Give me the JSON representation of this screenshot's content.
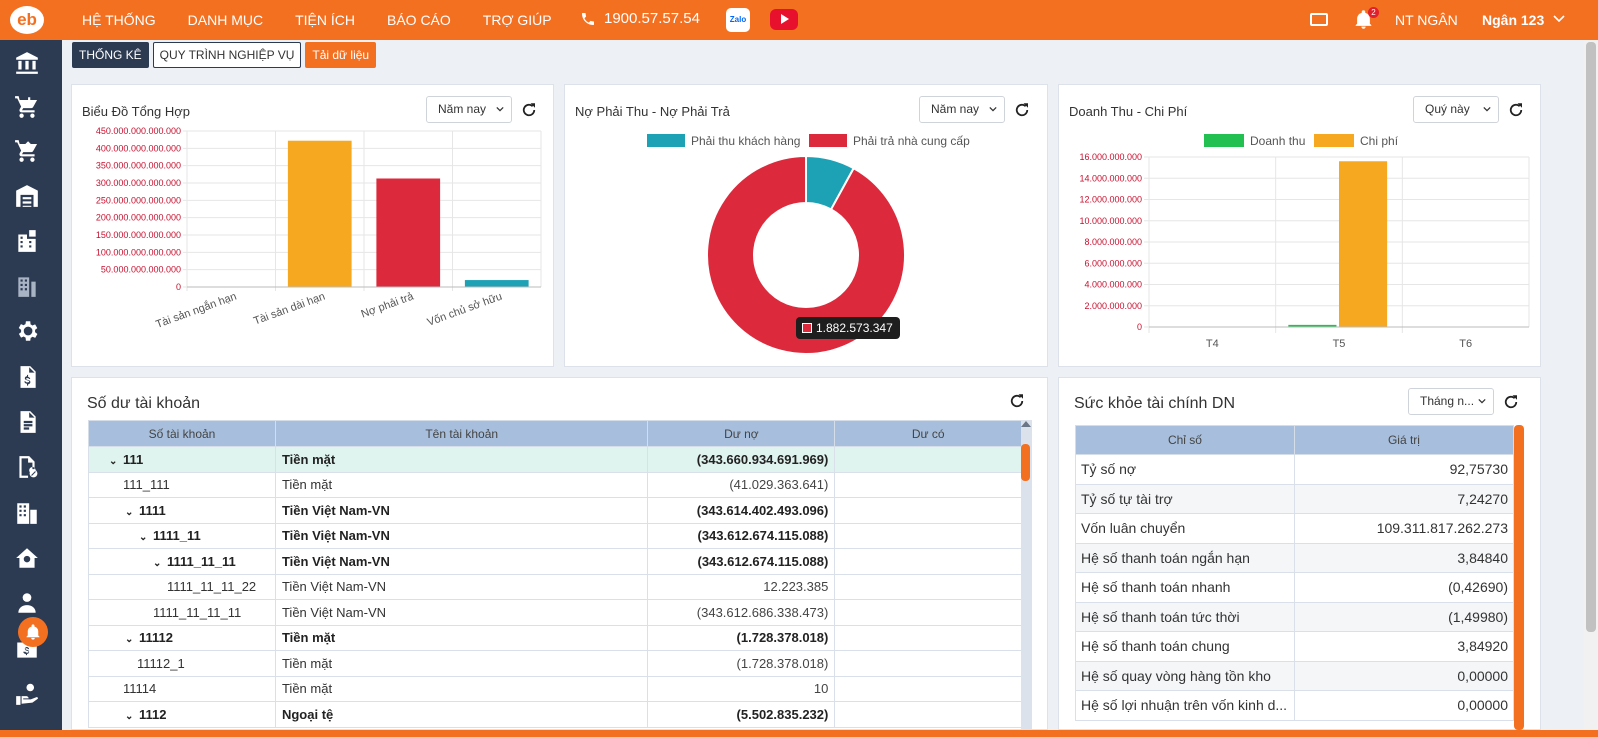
{
  "app": {
    "logo": "eb"
  },
  "topbar": {
    "menu": [
      "HỆ THỐNG",
      "DANH MỤC",
      "TIỆN ÍCH",
      "BÁO CÁO",
      "TRỢ GIÚP"
    ],
    "hotline": "1900.57.57.54",
    "zalo_label": "Zalo",
    "notification_count": "2",
    "user_short": "NT NGÂN",
    "user_name": "Ngân 123"
  },
  "tabs": [
    "THỐNG KÊ",
    "QUY TRÌNH NGHIỆP VỤ",
    "Tải dữ liệu"
  ],
  "cards": {
    "summary": {
      "title": "Biểu Đồ Tổng Hợp",
      "filter": "Năm nay"
    },
    "debt": {
      "title": "Nợ Phải Thu - Nợ Phải Trả",
      "filter": "Năm nay",
      "tooltip": "1.882.573.347"
    },
    "revenue": {
      "title": "Doanh Thu - Chi Phí",
      "filter": "Quý này"
    },
    "accounts": {
      "title": "Số dư tài khoản"
    },
    "health": {
      "title": "Sức khỏe tài chính DN",
      "filter": "Tháng n..."
    }
  },
  "chart_data": [
    {
      "type": "bar",
      "categories": [
        "Tài sản ngắn hạn",
        "Tài sản dài hạn",
        "Nợ phải trả",
        "Vốn chủ sở hữu"
      ],
      "values": [
        0,
        422000000000000,
        313000000000000,
        20000000000000
      ],
      "colors": [
        "#f6a821",
        "#f6a821",
        "#dc2a3c",
        "#1da1b5"
      ],
      "ylim": [
        0,
        450000000000000
      ],
      "yticks": [
        "450.000.000.000.000",
        "400.000.000.000.000",
        "350.000.000.000.000",
        "300.000.000.000.000",
        "250.000.000.000.000",
        "200.000.000.000.000",
        "150.000.000.000.000",
        "100.000.000.000.000",
        "50.000.000.000.000",
        "0"
      ],
      "grid": true
    },
    {
      "type": "pie",
      "series": [
        {
          "name": "Phải thu khách hàng",
          "value": 8,
          "color": "#1da1b5"
        },
        {
          "name": "Phải trả nhà cung cấp",
          "value": 92,
          "color": "#dc2a3c"
        }
      ],
      "legend": "top"
    },
    {
      "type": "bar",
      "categories": [
        "T4",
        "T5",
        "T6"
      ],
      "series": [
        {
          "name": "Doanh thu",
          "values": [
            0,
            200000000,
            0
          ],
          "color": "#22c050"
        },
        {
          "name": "Chi phí",
          "values": [
            0,
            15600000000,
            0
          ],
          "color": "#f6a821"
        }
      ],
      "ylim": [
        0,
        16000000000
      ],
      "yticks": [
        "16.000.000.000",
        "14.000.000.000",
        "12.000.000.000",
        "10.000.000.000",
        "8.000.000.000",
        "6.000.000.000",
        "4.000.000.000",
        "2.000.000.000",
        "0"
      ],
      "legend": "top",
      "grid": true
    }
  ],
  "accounts_table": {
    "headers": [
      "Số tài khoản",
      "Tên tài khoản",
      "Dư nợ",
      "Dư có"
    ],
    "rows": [
      {
        "code": "111",
        "name": "Tiền mặt",
        "debit": "(343.660.934.691.969)",
        "credit": "",
        "bold": true,
        "caret": true
      },
      {
        "code": "111_111",
        "name": "Tiền mặt",
        "debit": "(41.029.363.641)",
        "credit": "",
        "bold": false,
        "caret": false
      },
      {
        "code": "1111",
        "name": "Tiền Việt Nam-VN",
        "debit": "(343.614.402.493.096)",
        "credit": "",
        "bold": true,
        "caret": true
      },
      {
        "code": "1111_11",
        "name": "Tiền Việt Nam-VN",
        "debit": "(343.612.674.115.088)",
        "credit": "",
        "bold": true,
        "caret": true
      },
      {
        "code": "1111_11_11",
        "name": "Tiền Việt Nam-VN",
        "debit": "(343.612.674.115.088)",
        "credit": "",
        "bold": true,
        "caret": true
      },
      {
        "code": "1111_11_11_22",
        "name": "Tiền Việt Nam-VN",
        "debit": "12.223.385",
        "credit": "",
        "bold": false,
        "caret": false
      },
      {
        "code": "1111_11_11_11",
        "name": "Tiền Việt Nam-VN",
        "debit": "(343.612.686.338.473)",
        "credit": "",
        "bold": false,
        "caret": false
      },
      {
        "code": "11112",
        "name": "Tiền mặt",
        "debit": "(1.728.378.018)",
        "credit": "",
        "bold": true,
        "caret": true
      },
      {
        "code": "11112_1",
        "name": "Tiền mặt",
        "debit": "(1.728.378.018)",
        "credit": "",
        "bold": false,
        "caret": false
      },
      {
        "code": "11114",
        "name": "Tiền mặt",
        "debit": "10",
        "credit": "",
        "bold": false,
        "caret": false
      },
      {
        "code": "1112",
        "name": "Ngoại tệ",
        "debit": "(5.502.835.232)",
        "credit": "",
        "bold": true,
        "caret": true
      }
    ]
  },
  "health_table": {
    "headers": [
      "Chỉ số",
      "Giá trị"
    ],
    "rows": [
      {
        "name": "Tỷ số nợ",
        "value": "92,75730"
      },
      {
        "name": "Tỷ số tự tài trợ",
        "value": "7,24270"
      },
      {
        "name": "Vốn luân chuyển",
        "value": "109.311.817.262.273"
      },
      {
        "name": "Hệ số thanh toán ngắn hạn",
        "value": "3,84840"
      },
      {
        "name": "Hệ số thanh toán nhanh",
        "value": "(0,42690)"
      },
      {
        "name": "Hệ số thanh toán tức thời",
        "value": "(1,49980)"
      },
      {
        "name": "Hệ số thanh toán chung",
        "value": "3,84920"
      },
      {
        "name": "Hệ số quay vòng hàng tồn kho",
        "value": "0,00000"
      },
      {
        "name": "Hệ số lợi nhuận trên vốn kinh d...",
        "value": "0,00000"
      }
    ]
  },
  "sidebar": {
    "icons": [
      "bank-icon",
      "cart-download-icon",
      "cart-upload-icon",
      "warehouse-icon",
      "building-icon",
      "building-alt-icon",
      "settings-gear-icon",
      "document-dollar-icon",
      "document-list-icon",
      "document-percent-icon",
      "office-icon",
      "home-settings-icon",
      "user-icon",
      "dollar-box-icon",
      "hand-coin-icon"
    ]
  }
}
